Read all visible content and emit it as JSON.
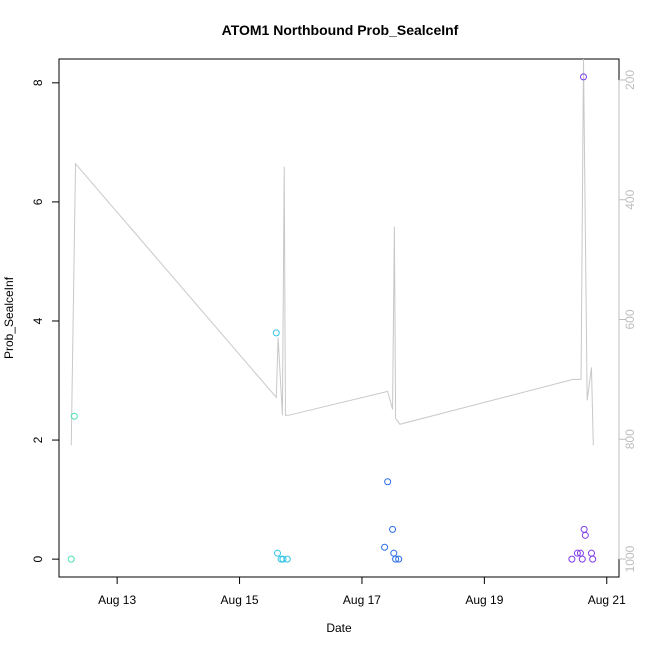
{
  "chart_data": {
    "type": "scatter",
    "title": "ATOM1 Northbound Prob_SealceInf",
    "xlabel": "Date",
    "ylabel": "Prob_SealceInf",
    "x_tick_labels": [
      "Aug 13",
      "Aug 15",
      "Aug 17",
      "Aug 19",
      "Aug 21"
    ],
    "x_ticks_days": [
      13,
      15,
      17,
      19,
      21
    ],
    "xlim_days": [
      12.05,
      21.2
    ],
    "ylim": [
      -0.3,
      8.4
    ],
    "y_ticks": [
      0,
      2,
      4,
      6,
      8
    ],
    "y2_ticks": [
      200,
      400,
      600,
      800,
      1000
    ],
    "y2lim": [
      1030,
      165
    ],
    "points": [
      {
        "day": 12.25,
        "value": 0.0,
        "color": "#4de0b9"
      },
      {
        "day": 12.3,
        "value": 2.4,
        "color": "#4de0b9"
      },
      {
        "day": 15.6,
        "value": 3.8,
        "color": "#35c5e8"
      },
      {
        "day": 15.62,
        "value": 0.1,
        "color": "#35c5e8"
      },
      {
        "day": 15.68,
        "value": 0.0,
        "color": "#35c5e8"
      },
      {
        "day": 15.71,
        "value": 0.0,
        "color": "#35c5e8"
      },
      {
        "day": 15.78,
        "value": 0.0,
        "color": "#35c5e8"
      },
      {
        "day": 17.37,
        "value": 0.2,
        "color": "#2b6ee8"
      },
      {
        "day": 17.42,
        "value": 1.3,
        "color": "#2b6ee8"
      },
      {
        "day": 17.5,
        "value": 0.5,
        "color": "#2b6ee8"
      },
      {
        "day": 17.52,
        "value": 0.1,
        "color": "#2b6ee8"
      },
      {
        "day": 17.55,
        "value": 0.0,
        "color": "#2b6ee8"
      },
      {
        "day": 17.6,
        "value": 0.0,
        "color": "#2b6ee8"
      },
      {
        "day": 20.43,
        "value": 0.0,
        "color": "#7f3bed"
      },
      {
        "day": 20.52,
        "value": 0.1,
        "color": "#7f3bed"
      },
      {
        "day": 20.57,
        "value": 0.1,
        "color": "#7f3bed"
      },
      {
        "day": 20.6,
        "value": 0.0,
        "color": "#7f3bed"
      },
      {
        "day": 20.62,
        "value": 8.1,
        "color": "#7f3bed"
      },
      {
        "day": 20.63,
        "value": 0.5,
        "color": "#7f3bed"
      },
      {
        "day": 20.65,
        "value": 0.4,
        "color": "#7f3bed"
      },
      {
        "day": 20.75,
        "value": 0.1,
        "color": "#7f3bed"
      },
      {
        "day": 20.77,
        "value": 0.0,
        "color": "#7f3bed"
      }
    ],
    "line": {
      "color": "#c8c8c8",
      "axis": "right",
      "points": [
        [
          12.25,
          810
        ],
        [
          12.32,
          340
        ],
        [
          15.6,
          730
        ],
        [
          15.63,
          630
        ],
        [
          15.7,
          760
        ],
        [
          15.73,
          345
        ],
        [
          15.75,
          760
        ],
        [
          15.8,
          760
        ],
        [
          17.42,
          720
        ],
        [
          17.5,
          750
        ],
        [
          17.53,
          445
        ],
        [
          17.55,
          765
        ],
        [
          17.62,
          775
        ],
        [
          20.45,
          700
        ],
        [
          20.58,
          700
        ],
        [
          20.62,
          165
        ],
        [
          20.68,
          735
        ],
        [
          20.75,
          680
        ],
        [
          20.78,
          810
        ]
      ]
    }
  }
}
